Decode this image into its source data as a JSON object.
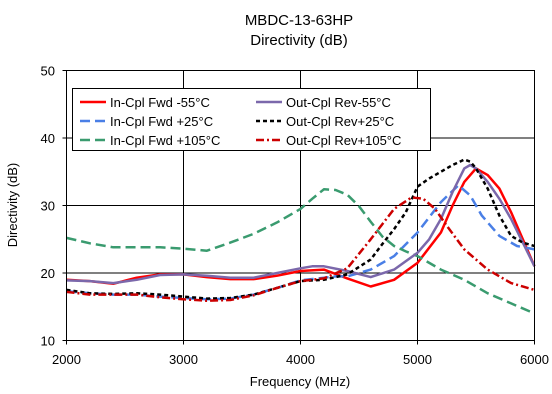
{
  "chart_data": {
    "type": "line",
    "title": "MBDC-13-63HP",
    "subtitle": "Directivity (dB)",
    "xlabel": "Frequency (MHz)",
    "ylabel": "Directivity (dB)",
    "xlim": [
      2000,
      6000
    ],
    "ylim": [
      10,
      50
    ],
    "xticks": [
      2000,
      3000,
      4000,
      5000,
      6000
    ],
    "yticks": [
      10,
      20,
      30,
      40,
      50
    ],
    "grid": true,
    "legend_position": "top-left",
    "series": [
      {
        "name": "In-Cpl Fwd -55°C",
        "color": "#ff0000",
        "dash": "solid",
        "x": [
          2000,
          2200,
          2400,
          2600,
          2800,
          3000,
          3200,
          3400,
          3600,
          3800,
          4000,
          4200,
          4400,
          4600,
          4800,
          5000,
          5200,
          5300,
          5400,
          5500,
          5600,
          5700,
          5800,
          5900,
          6000
        ],
        "y": [
          19.0,
          18.8,
          18.4,
          19.3,
          19.8,
          19.8,
          19.4,
          19.1,
          19.1,
          19.6,
          20.3,
          20.5,
          19.2,
          18.0,
          19.0,
          21.5,
          26.0,
          30.0,
          33.5,
          35.5,
          34.5,
          32.5,
          29.0,
          25.0,
          21.0
        ]
      },
      {
        "name": "In-Cpl Fwd +25°C",
        "color": "#4a7fe6",
        "dash": "dash",
        "x": [
          2000,
          2200,
          2400,
          2600,
          2800,
          3000,
          3200,
          3400,
          3600,
          3800,
          4000,
          4200,
          4300,
          4400,
          4600,
          4800,
          5000,
          5200,
          5350,
          5450,
          5550,
          5700,
          5850,
          6000
        ],
        "y": [
          17.3,
          17.0,
          16.8,
          16.8,
          16.5,
          16.3,
          16.1,
          16.2,
          16.8,
          17.8,
          18.9,
          19.3,
          19.5,
          19.5,
          20.5,
          22.5,
          26.0,
          30.5,
          33.0,
          31.5,
          28.5,
          25.5,
          24.0,
          23.5
        ]
      },
      {
        "name": "In-Cpl Fwd +105°C",
        "color": "#3a9b6f",
        "dash": "dash",
        "x": [
          2000,
          2200,
          2400,
          2600,
          2800,
          3000,
          3200,
          3400,
          3600,
          3800,
          4000,
          4100,
          4200,
          4300,
          4400,
          4500,
          4600,
          4700,
          4800,
          4900,
          5000,
          5200,
          5400,
          5600,
          5800,
          6000
        ],
        "y": [
          25.2,
          24.4,
          23.8,
          23.8,
          23.8,
          23.6,
          23.3,
          24.5,
          25.8,
          27.5,
          29.5,
          31.0,
          32.4,
          32.3,
          31.6,
          29.9,
          27.6,
          25.4,
          24.0,
          23.2,
          22.5,
          20.5,
          19.0,
          17.0,
          15.5,
          14.0
        ]
      },
      {
        "name": "Out-Cpl Rev-55°C",
        "color": "#7b68ab",
        "dash": "solid",
        "x": [
          2000,
          2200,
          2400,
          2600,
          2800,
          3000,
          3200,
          3400,
          3600,
          3800,
          4000,
          4100,
          4200,
          4400,
          4600,
          4800,
          5000,
          5100,
          5200,
          5300,
          5400,
          5450,
          5500,
          5600,
          5700,
          5800,
          5900,
          6000
        ],
        "y": [
          18.9,
          18.8,
          18.5,
          19.0,
          19.7,
          19.8,
          19.6,
          19.3,
          19.3,
          20.0,
          20.7,
          21.0,
          21.0,
          20.3,
          19.4,
          20.5,
          23.0,
          25.0,
          28.0,
          32.0,
          35.5,
          36.0,
          35.5,
          33.5,
          31.0,
          28.0,
          24.5,
          21.0
        ]
      },
      {
        "name": "Out-Cpl Rev+25°C",
        "color": "#000000",
        "dash": "dash-short",
        "x": [
          2000,
          2200,
          2400,
          2600,
          2800,
          3000,
          3200,
          3400,
          3600,
          3800,
          4000,
          4200,
          4400,
          4600,
          4700,
          4800,
          4900,
          5000,
          5100,
          5200,
          5300,
          5400,
          5450,
          5500,
          5600,
          5700,
          5800,
          5900,
          6000
        ],
        "y": [
          17.5,
          17.0,
          16.9,
          17.0,
          16.8,
          16.5,
          16.2,
          16.3,
          16.8,
          17.8,
          18.8,
          19.0,
          19.8,
          22.0,
          24.3,
          26.5,
          29.0,
          32.8,
          34.0,
          35.0,
          36.0,
          36.8,
          36.5,
          35.5,
          32.5,
          28.5,
          25.5,
          24.5,
          24.0
        ]
      },
      {
        "name": "Out-Cpl Rev+105°C",
        "color": "#cc0000",
        "dash": "dash-dot",
        "x": [
          2000,
          2200,
          2400,
          2600,
          2800,
          3000,
          3200,
          3400,
          3600,
          3800,
          4000,
          4200,
          4400,
          4600,
          4800,
          4950,
          5050,
          5150,
          5250,
          5400,
          5600,
          5800,
          6000
        ],
        "y": [
          17.2,
          16.8,
          16.8,
          16.8,
          16.4,
          16.1,
          15.9,
          16.0,
          16.7,
          17.8,
          18.8,
          19.2,
          20.7,
          25.0,
          29.5,
          31.2,
          31.0,
          29.5,
          27.0,
          23.5,
          20.5,
          18.5,
          17.5
        ]
      }
    ]
  }
}
